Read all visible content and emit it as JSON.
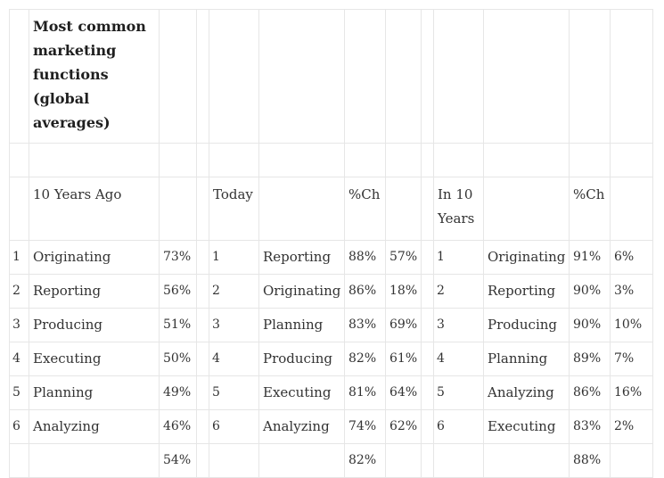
{
  "title": "Most common marketing functions (global averages)",
  "headers": {
    "ten_years_ago": "10 Years Ago",
    "today": "Today",
    "pct_change_today": "%Ch",
    "in_ten_years": "In 10 Years",
    "pct_change_future": "%Ch"
  },
  "rows": [
    {
      "rank_a": "1",
      "func_a": "Originating",
      "pct_a": "73%",
      "rank_b": "1",
      "func_b": "Reporting",
      "pct_b": "88%",
      "ch_b": "57%",
      "rank_c": "1",
      "func_c": "Originating",
      "pct_c": "91%",
      "ch_c": "6%"
    },
    {
      "rank_a": "2",
      "func_a": "Reporting",
      "pct_a": "56%",
      "rank_b": "2",
      "func_b": "Originating",
      "pct_b": "86%",
      "ch_b": "18%",
      "rank_c": "2",
      "func_c": "Reporting",
      "pct_c": "90%",
      "ch_c": "3%"
    },
    {
      "rank_a": "3",
      "func_a": "Producing",
      "pct_a": "51%",
      "rank_b": "3",
      "func_b": "Planning",
      "pct_b": "83%",
      "ch_b": "69%",
      "rank_c": "3",
      "func_c": "Producing",
      "pct_c": "90%",
      "ch_c": "10%"
    },
    {
      "rank_a": "4",
      "func_a": "Executing",
      "pct_a": "50%",
      "rank_b": "4",
      "func_b": "Producing",
      "pct_b": "82%",
      "ch_b": "61%",
      "rank_c": "4",
      "func_c": "Planning",
      "pct_c": "89%",
      "ch_c": "7%"
    },
    {
      "rank_a": "5",
      "func_a": "Planning",
      "pct_a": "49%",
      "rank_b": "5",
      "func_b": "Executing",
      "pct_b": "81%",
      "ch_b": "64%",
      "rank_c": "5",
      "func_c": "Analyzing",
      "pct_c": "86%",
      "ch_c": "16%"
    },
    {
      "rank_a": "6",
      "func_a": "Analyzing",
      "pct_a": "46%",
      "rank_b": "6",
      "func_b": "Analyzing",
      "pct_b": "74%",
      "ch_b": "62%",
      "rank_c": "6",
      "func_c": "Executing",
      "pct_c": "83%",
      "ch_c": "2%"
    }
  ],
  "totals": {
    "ten_years_ago": "54%",
    "today": "82%",
    "in_ten_years": "88%"
  }
}
